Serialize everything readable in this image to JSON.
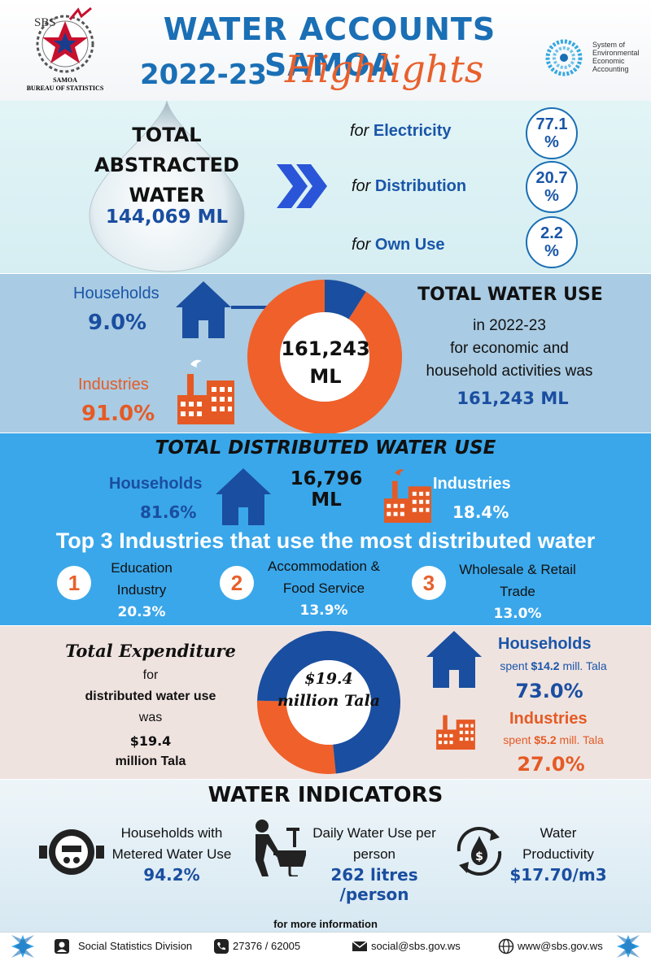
{
  "header": {
    "title_line1": "WATER ACCOUNTS SAMOA",
    "title_year": "2022-23",
    "title_highlights": "Highlights",
    "logo_abbrev": "SBS",
    "logo_name1": "SAMOA",
    "logo_name2": "BUREAU OF STATISTICS",
    "seea_text": "System of Environmental Economic Accounting",
    "colors": {
      "title_blue": "#1a6fb5",
      "highlights_orange": "#e8602c"
    }
  },
  "abstracted": {
    "title": "TOTAL ABSTRACTED WATER",
    "value": "144,069 ML",
    "uses": [
      {
        "prefix": "for",
        "name": "Electricity",
        "pct": "77.1 %",
        "value": 77.1
      },
      {
        "prefix": "for",
        "name": "Distribution",
        "pct": "20.7 %",
        "value": 20.7
      },
      {
        "prefix": "for",
        "name": "Own Use",
        "pct": "2.2 %",
        "value": 2.2
      }
    ]
  },
  "total_use": {
    "households_label": "Households",
    "households_pct": "9.0%",
    "industries_label": "Industries",
    "industries_pct": "91.0%",
    "donut_center": "161,243 ML",
    "donut_values": {
      "households": 9.0,
      "industries": 91.0
    },
    "title": "TOTAL WATER USE",
    "line1": "in 2022-23",
    "line2": "for economic and",
    "line3": "household activities was",
    "value": "161,243 ML",
    "colors": {
      "households": "#1a4ea0",
      "industries": "#f0602a"
    }
  },
  "distributed": {
    "title": "TOTAL DISTRIBUTED WATER USE",
    "value": "16,796 ML",
    "households_label": "Households",
    "households_pct": "81.6%",
    "industries_label": "Industries",
    "industries_pct": "18.4%",
    "top3_title": "Top 3 Industries that use the most distributed water",
    "top3": [
      {
        "rank": "1",
        "name_line1": "Education",
        "name_line2": "Industry",
        "pct": "20.3%"
      },
      {
        "rank": "2",
        "name_line1": "Accommodation &",
        "name_line2": "Food Service",
        "pct": "13.9%"
      },
      {
        "rank": "3",
        "name_line1": "Wholesale & Retail",
        "name_line2": "Trade",
        "pct": "13.0%"
      }
    ]
  },
  "expenditure": {
    "title": "Total Expenditure",
    "line1": "for",
    "line2": "distributed water use",
    "line3": "was",
    "value_line1": "$19.4",
    "value_line2": "million Tala",
    "donut_center": "$19.4 million Tala",
    "donut_values": {
      "households": 73.0,
      "industries": 27.0
    },
    "households_label": "Households",
    "households_sub_prefix": "spent",
    "households_sub_amount": "$14.2",
    "households_sub_suffix": "mill. Tala",
    "households_pct": "73.0%",
    "industries_label": "Industries",
    "industries_sub_prefix": "spent",
    "industries_sub_amount": "$5.2",
    "industries_sub_suffix": "mill. Tala",
    "industries_pct": "27.0%"
  },
  "indicators": {
    "title": "WATER INDICATORS",
    "items": [
      {
        "icon": "water-meter-icon",
        "label_line1": "Households with",
        "label_line2": "Metered Water Use",
        "value": "94.2%"
      },
      {
        "icon": "hand-washing-icon",
        "label_line1": "Daily Water Use per",
        "label_line2": "person",
        "value": "262 litres /person"
      },
      {
        "icon": "water-cycle-icon",
        "label_line1": "Water",
        "label_line2": "Productivity",
        "value": "$17.70/m3"
      }
    ],
    "more_info": "for more information"
  },
  "footer": {
    "division": "Social Statistics Division",
    "phone": "27376 / 62005",
    "email": "social@sbs.gov.ws",
    "website": "www@sbs.gov.ws"
  }
}
